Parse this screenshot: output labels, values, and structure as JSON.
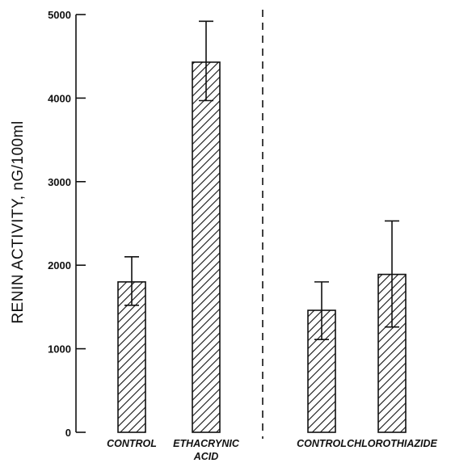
{
  "chart_data": {
    "type": "bar",
    "title": "",
    "xlabel": "",
    "ylabel": "RENIN ACTIVITY, nG/100ml",
    "ylim": [
      0,
      5000
    ],
    "yticks": [
      0,
      1000,
      2000,
      3000,
      4000,
      5000
    ],
    "grid": false,
    "bar_pattern": "diagonal-hatch",
    "groups_separated_by": "dashed-vertical-line",
    "categories": [
      {
        "label": "CONTROL",
        "label_lines": [
          "CONTROL"
        ],
        "value": 1800,
        "err_upper": 2100,
        "err_lower": 1520
      },
      {
        "label": "ETHACRYNIC ACID",
        "label_lines": [
          "ETHACRYNIC",
          "ACID"
        ],
        "value": 4430,
        "err_upper": 4920,
        "err_lower": 3970
      },
      {
        "label": "CONTROL",
        "label_lines": [
          "CONTROL"
        ],
        "value": 1460,
        "err_upper": 1800,
        "err_lower": 1110
      },
      {
        "label": "CHLOROTHIAZIDE",
        "label_lines": [
          "CHLOROTHIAZIDE"
        ],
        "value": 1890,
        "err_upper": 2530,
        "err_lower": 1260
      }
    ],
    "colors": {
      "ink": "#111111",
      "background": "#ffffff"
    }
  }
}
